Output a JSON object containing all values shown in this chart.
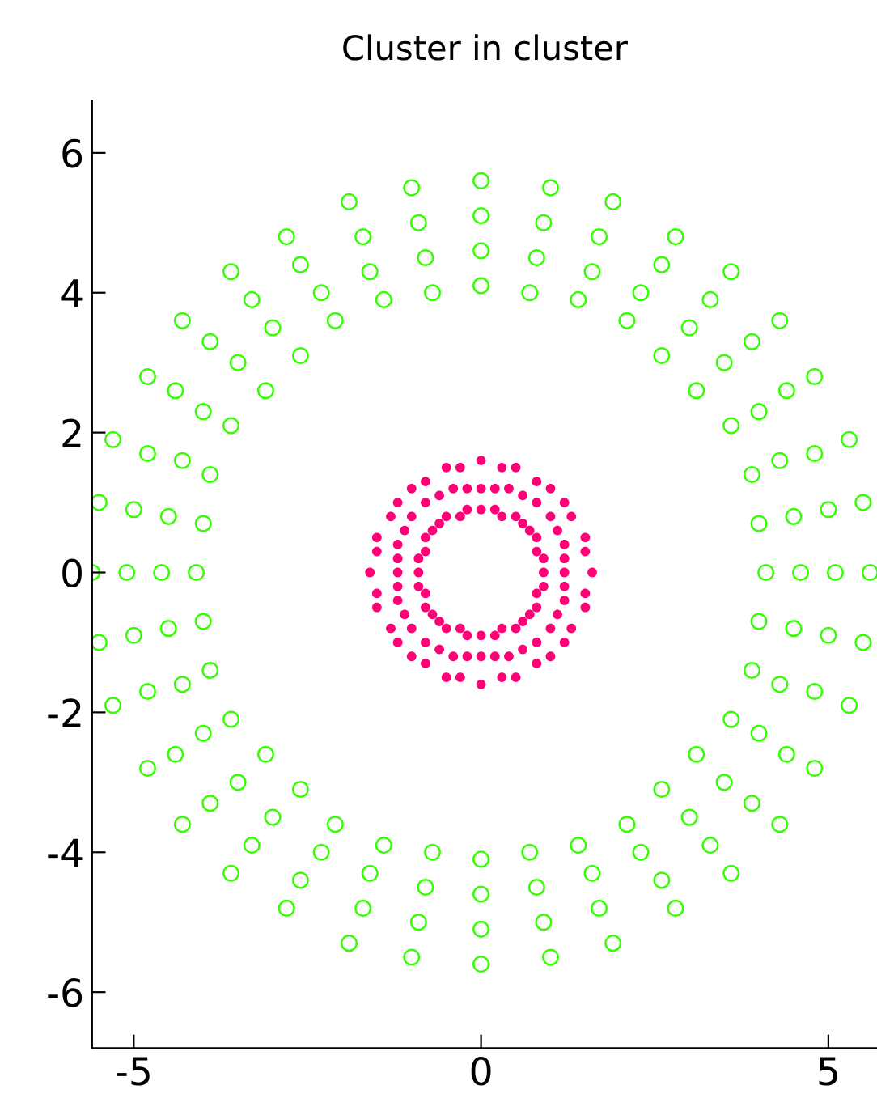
{
  "chart_data": {
    "type": "scatter",
    "title": "Cluster in cluster",
    "xlim": [
      -5.6,
      5.7
    ],
    "ylim": [
      -6.8,
      6.75
    ],
    "xticks": [
      -5,
      0,
      5
    ],
    "yticks": [
      -6,
      -4,
      -2,
      0,
      2,
      4,
      6
    ],
    "grid": false,
    "legend": false,
    "series": [
      {
        "color": "#33ff00",
        "marker": "circle",
        "x": [
          4.1,
          4.0,
          3.9,
          3.6,
          3.1,
          2.6,
          2.1,
          1.4,
          0.7,
          0,
          -0.7,
          -1.4,
          -2.1,
          -2.6,
          -3.1,
          -3.6,
          -3.9,
          -4.0,
          -4.1,
          -4.0,
          -3.9,
          -3.6,
          -3.1,
          -2.6,
          -2.1,
          -1.4,
          -0.7,
          0,
          0.7,
          1.4,
          2.1,
          2.6,
          3.1,
          3.6,
          3.9,
          4.0,
          4.6,
          4.5,
          4.3,
          4.0,
          3.5,
          3.0,
          2.3,
          1.6,
          0.8,
          0,
          -0.8,
          -1.6,
          -2.3,
          -3.0,
          -3.5,
          -4.0,
          -4.3,
          -4.5,
          -4.6,
          -4.5,
          -4.3,
          -4.0,
          -3.5,
          -3.0,
          -2.3,
          -1.6,
          -0.8,
          0,
          0.8,
          1.6,
          2.3,
          3.0,
          3.5,
          4.0,
          4.3,
          4.5,
          5.1,
          5.0,
          4.8,
          4.4,
          3.9,
          3.3,
          2.6,
          1.7,
          0.9,
          0,
          -0.9,
          -1.7,
          -2.6,
          -3.3,
          -3.9,
          -4.4,
          -4.8,
          -5.0,
          -5.1,
          -5.0,
          -4.8,
          -4.4,
          -3.9,
          -3.3,
          -2.6,
          -1.7,
          -0.9,
          0,
          0.9,
          1.7,
          2.6,
          3.3,
          3.9,
          4.4,
          4.8,
          5.0,
          5.6,
          5.5,
          5.3,
          4.8,
          4.3,
          3.6,
          2.8,
          1.9,
          1.0,
          0,
          -1.0,
          -1.9,
          -2.8,
          -3.6,
          -4.3,
          -4.8,
          -5.3,
          -5.5,
          -5.6,
          -5.5,
          -5.3,
          -4.8,
          -4.3,
          -3.6,
          -2.8,
          -1.9,
          -1.0,
          0,
          1.0,
          1.9,
          2.8,
          3.6,
          4.3,
          4.8,
          5.3,
          5.5
        ],
        "values": [
          0,
          0.7,
          1.4,
          2.1,
          2.6,
          3.1,
          3.6,
          3.9,
          4.0,
          4.1,
          4.0,
          3.9,
          3.6,
          3.1,
          2.6,
          2.1,
          1.4,
          0.7,
          0,
          -0.7,
          -1.4,
          -2.1,
          -2.6,
          -3.1,
          -3.6,
          -3.9,
          -4.0,
          -4.1,
          -4.0,
          -3.9,
          -3.6,
          -3.1,
          -2.6,
          -2.1,
          -1.4,
          -0.7,
          0,
          0.8,
          1.6,
          2.3,
          3.0,
          3.5,
          4.0,
          4.3,
          4.5,
          4.6,
          4.5,
          4.3,
          4.0,
          3.5,
          3.0,
          2.3,
          1.6,
          0.8,
          0,
          -0.8,
          -1.6,
          -2.3,
          -3.0,
          -3.5,
          -4.0,
          -4.3,
          -4.5,
          -4.6,
          -4.5,
          -4.3,
          -4.0,
          -3.5,
          -3.0,
          -2.3,
          -1.6,
          -0.8,
          0,
          0.9,
          1.7,
          2.6,
          3.3,
          3.9,
          4.4,
          4.8,
          5.0,
          5.1,
          5.0,
          4.8,
          4.4,
          3.9,
          3.3,
          2.6,
          1.7,
          0.9,
          0,
          -0.9,
          -1.7,
          -2.6,
          -3.3,
          -3.9,
          -4.4,
          -4.8,
          -5.0,
          -5.1,
          -5.0,
          -4.8,
          -4.4,
          -3.9,
          -3.3,
          -2.6,
          -1.7,
          -0.9,
          0,
          1.0,
          1.9,
          2.8,
          3.6,
          4.3,
          4.8,
          5.3,
          5.5,
          5.6,
          5.5,
          5.3,
          4.8,
          4.3,
          3.6,
          2.8,
          1.9,
          1.0,
          0,
          -1.0,
          -1.9,
          -2.8,
          -3.6,
          -4.3,
          -4.8,
          -5.3,
          -5.5,
          -5.6,
          -5.5,
          -5.3,
          -4.8,
          -4.3,
          -3.6,
          -2.8,
          -1.9,
          -1.0
        ]
      },
      {
        "color": "#ff0077",
        "marker": "circle",
        "x": [
          0.9,
          0.9,
          0.8,
          0.8,
          0.7,
          0.6,
          0.5,
          0.3,
          0.2,
          0,
          -0.2,
          -0.3,
          -0.5,
          -0.6,
          -0.7,
          -0.8,
          -0.8,
          -0.9,
          -0.9,
          -0.9,
          -0.8,
          -0.8,
          -0.7,
          -0.6,
          -0.5,
          -0.3,
          -0.2,
          0,
          0.2,
          0.3,
          0.5,
          0.6,
          0.7,
          0.8,
          0.8,
          0.9,
          1.2,
          1.2,
          1.2,
          1.1,
          1.0,
          0.8,
          0.6,
          0.4,
          0.2,
          0,
          -0.2,
          -0.4,
          -0.6,
          -0.8,
          -1.0,
          -1.1,
          -1.2,
          -1.2,
          -1.2,
          -1.2,
          -1.2,
          -1.1,
          -1.0,
          -0.8,
          -0.6,
          -0.4,
          -0.2,
          0,
          0.2,
          0.4,
          0.6,
          0.8,
          1.0,
          1.1,
          1.2,
          1.2,
          1.6,
          1.5,
          1.5,
          1.3,
          1.2,
          1.0,
          0.8,
          0.5,
          0.3,
          0,
          -0.3,
          -0.5,
          -0.8,
          -1.0,
          -1.2,
          -1.3,
          -1.5,
          -1.5,
          -1.6,
          -1.5,
          -1.5,
          -1.3,
          -1.2,
          -1.0,
          -0.8,
          -0.5,
          -0.3,
          0,
          0.3,
          0.5,
          0.8,
          1.0,
          1.2,
          1.3,
          1.5,
          1.5
        ],
        "values": [
          0,
          0.2,
          0.3,
          0.5,
          0.6,
          0.7,
          0.8,
          0.8,
          0.9,
          0.9,
          0.9,
          0.8,
          0.8,
          0.7,
          0.6,
          0.5,
          0.3,
          0.2,
          0,
          -0.2,
          -0.3,
          -0.5,
          -0.6,
          -0.7,
          -0.8,
          -0.8,
          -0.9,
          -0.9,
          -0.9,
          -0.8,
          -0.8,
          -0.7,
          -0.6,
          -0.5,
          -0.3,
          -0.2,
          0,
          0.2,
          0.4,
          0.6,
          0.8,
          1.0,
          1.1,
          1.2,
          1.2,
          1.2,
          1.2,
          1.2,
          1.1,
          1.0,
          0.8,
          0.6,
          0.4,
          0.2,
          0,
          -0.2,
          -0.4,
          -0.6,
          -0.8,
          -1.0,
          -1.1,
          -1.2,
          -1.2,
          -1.2,
          -1.2,
          -1.2,
          -1.1,
          -1.0,
          -0.8,
          -0.6,
          -0.4,
          -0.2,
          0,
          0.3,
          0.5,
          0.8,
          1.0,
          1.2,
          1.3,
          1.5,
          1.5,
          1.6,
          1.5,
          1.5,
          1.3,
          1.2,
          1.0,
          0.8,
          0.5,
          0.3,
          0,
          -0.3,
          -0.5,
          -0.8,
          -1.0,
          -1.2,
          -1.3,
          -1.5,
          -1.5,
          -1.6,
          -1.5,
          -1.5,
          -1.3,
          -1.2,
          -1.0,
          -0.8,
          -0.5,
          -0.3
        ]
      }
    ]
  }
}
